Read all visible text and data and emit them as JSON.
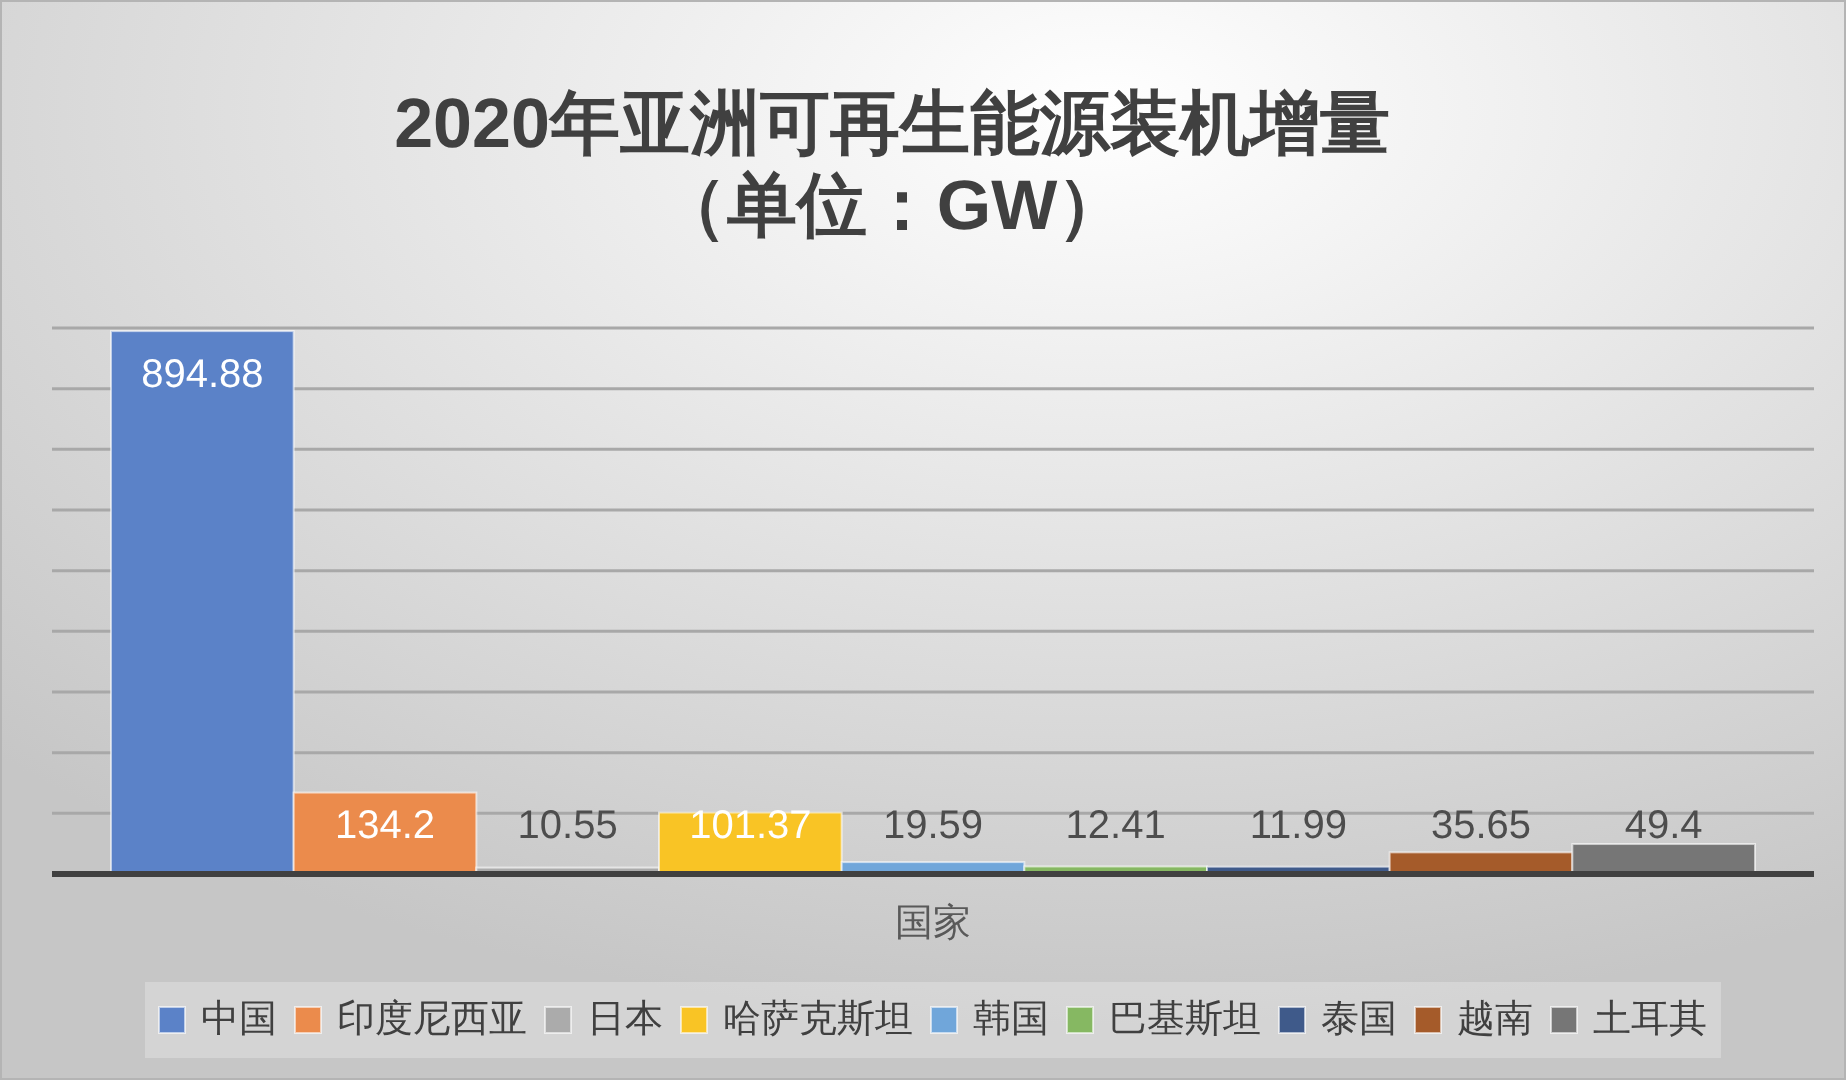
{
  "chart_data": {
    "type": "bar",
    "title": "2020年亚洲可再生能源装机增量",
    "subtitle": "（单位：GW）",
    "xlabel": "国家",
    "categories": [
      null,
      null,
      null,
      null,
      null,
      null,
      null,
      null,
      null
    ],
    "stacked": true,
    "series": [
      {
        "name": "中国",
        "color": "#5b82c8",
        "values": [
          894.88,
          null,
          null,
          null,
          null,
          null,
          null,
          null,
          null
        ]
      },
      {
        "name": "印度尼西亚",
        "color": "#eb8b4c",
        "values": [
          null,
          134.2,
          null,
          null,
          null,
          null,
          null,
          null,
          null
        ]
      },
      {
        "name": "日本",
        "color": "#ababab",
        "values": [
          null,
          null,
          10.55,
          null,
          null,
          null,
          null,
          null,
          null
        ]
      },
      {
        "name": "哈萨克斯坦",
        "color": "#f9c425",
        "values": [
          null,
          null,
          null,
          101.37,
          null,
          null,
          null,
          null,
          null
        ]
      },
      {
        "name": "韩国",
        "color": "#70a6da",
        "values": [
          null,
          null,
          null,
          null,
          19.59,
          null,
          null,
          null,
          null
        ]
      },
      {
        "name": "巴基斯坦",
        "color": "#86b862",
        "values": [
          null,
          null,
          null,
          null,
          null,
          12.41,
          null,
          null,
          null
        ]
      },
      {
        "name": "泰国",
        "color": "#3f5a8a",
        "values": [
          null,
          null,
          null,
          null,
          null,
          null,
          11.99,
          null,
          null
        ]
      },
      {
        "name": "越南",
        "color": "#a55b2a",
        "values": [
          null,
          null,
          null,
          null,
          null,
          null,
          null,
          35.65,
          null
        ]
      },
      {
        "name": "土耳其",
        "color": "#767676",
        "values": [
          null,
          null,
          null,
          null,
          null,
          null,
          null,
          null,
          49.4
        ]
      }
    ],
    "ylim": [
      0,
      900
    ],
    "yticks": [
      {
        "value": 0,
        "label": null
      },
      {
        "value": 100,
        "label": null
      },
      {
        "value": 200,
        "label": null
      },
      {
        "value": 300,
        "label": null
      },
      {
        "value": 400,
        "label": null
      },
      {
        "value": 500,
        "label": null
      },
      {
        "value": 600,
        "label": null
      },
      {
        "value": 700,
        "label": null
      },
      {
        "value": 800,
        "label": null
      },
      {
        "value": 900,
        "label": null
      }
    ],
    "grid": "y",
    "legend": "bottom",
    "data_labels": true
  }
}
